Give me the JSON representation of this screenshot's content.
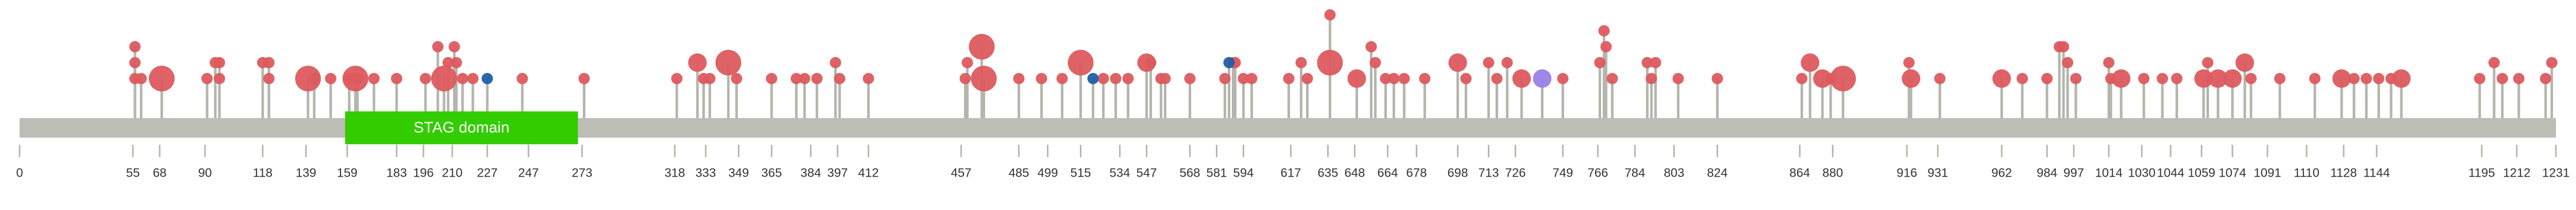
{
  "chart_data": {
    "type": "lollipop",
    "xlim": [
      0,
      1231
    ],
    "xticks": [
      0,
      55,
      68,
      90,
      118,
      139,
      159,
      183,
      196,
      210,
      227,
      247,
      273,
      318,
      333,
      349,
      365,
      384,
      397,
      412,
      457,
      485,
      499,
      515,
      534,
      547,
      568,
      581,
      594,
      617,
      635,
      648,
      664,
      678,
      698,
      713,
      726,
      749,
      766,
      784,
      803,
      824,
      864,
      880,
      916,
      931,
      962,
      984,
      997,
      1014,
      1030,
      1044,
      1059,
      1074,
      1091,
      1110,
      1128,
      1144,
      1195,
      1212,
      1231
    ],
    "domains": [
      {
        "name": "STAG domain",
        "start": 158,
        "end": 271,
        "color": "#33cc00"
      }
    ],
    "series": [
      {
        "color": "#dc5a5e",
        "x": [
          56,
          56,
          56,
          59,
          69,
          91,
          95,
          97,
          97,
          118,
          121,
          121,
          140,
          143,
          151,
          160,
          163,
          164,
          172,
          183,
          197,
          203,
          206,
          208,
          211,
          212,
          215,
          220,
          244,
          274,
          319,
          329,
          332,
          335,
          344,
          348,
          365,
          377,
          381,
          387,
          396,
          398,
          412,
          459,
          460,
          467,
          468,
          485,
          496,
          506,
          515,
          526,
          532,
          538,
          547,
          549,
          554,
          556,
          568,
          585,
          589,
          590,
          594,
          598,
          616,
          622,
          625,
          636,
          636,
          649,
          656,
          658,
          663,
          667,
          672,
          682,
          698,
          702,
          713,
          717,
          722,
          729,
          749,
          767,
          769,
          770,
          773,
          790,
          792,
          794,
          805,
          824,
          865,
          869,
          875,
          879,
          885,
          917,
          918,
          932,
          962,
          972,
          984,
          990,
          992,
          994,
          998,
          1014,
          1015,
          1020,
          1031,
          1040,
          1047,
          1060,
          1062,
          1067,
          1074,
          1080,
          1083,
          1097,
          1114,
          1127,
          1133,
          1139,
          1145,
          1151,
          1156,
          1194,
          1201,
          1205,
          1213,
          1226,
          1229
        ],
        "values": [
          3,
          2,
          1,
          1,
          1,
          1,
          2,
          2,
          1,
          2,
          2,
          1,
          1,
          1,
          1,
          1,
          1,
          1,
          1,
          1,
          1,
          3,
          1,
          2,
          3,
          2,
          1,
          1,
          1,
          1,
          1,
          2,
          1,
          1,
          2,
          1,
          1,
          1,
          1,
          1,
          2,
          1,
          1,
          1,
          2,
          3,
          1,
          1,
          1,
          1,
          2,
          1,
          1,
          1,
          2,
          2,
          1,
          1,
          1,
          1,
          2,
          2,
          1,
          1,
          1,
          2,
          1,
          2,
          5,
          1,
          3,
          2,
          1,
          1,
          1,
          1,
          2,
          1,
          2,
          1,
          2,
          1,
          1,
          2,
          4,
          3,
          1,
          2,
          1,
          2,
          1,
          1,
          1,
          2,
          1,
          1,
          1,
          2,
          1,
          1,
          1,
          1,
          1,
          3,
          3,
          2,
          1,
          2,
          1,
          1,
          1,
          1,
          1,
          1,
          2,
          1,
          1,
          2,
          1,
          1,
          1,
          1,
          1,
          1,
          1,
          1,
          1,
          1,
          2,
          1,
          1,
          1,
          2
        ],
        "sizes": [
          1,
          1,
          1,
          1,
          3,
          1,
          1,
          1,
          1,
          1,
          1,
          1,
          3,
          1,
          1,
          1,
          3,
          1,
          1,
          1,
          1,
          1,
          3,
          1,
          1,
          1,
          1,
          1,
          1,
          1,
          1,
          2,
          1,
          1,
          3,
          1,
          1,
          1,
          1,
          1,
          1,
          1,
          1,
          1,
          1,
          3,
          3,
          1,
          1,
          1,
          3,
          1,
          1,
          1,
          2,
          1,
          1,
          1,
          1,
          1,
          1,
          1,
          1,
          1,
          1,
          1,
          1,
          3,
          1,
          2,
          1,
          1,
          1,
          1,
          1,
          1,
          2,
          1,
          1,
          1,
          1,
          2,
          1,
          1,
          1,
          1,
          1,
          1,
          1,
          1,
          1,
          1,
          1,
          2,
          2,
          1,
          3,
          1,
          2,
          1,
          2,
          1,
          1,
          1,
          1,
          1,
          1,
          1,
          1,
          2,
          1,
          1,
          1,
          2,
          1,
          2,
          2,
          2,
          1,
          1,
          1,
          2,
          1,
          1,
          1,
          1,
          2,
          1,
          1,
          1,
          1,
          1,
          1
        ]
      },
      {
        "color": "#1f5fa8",
        "x": [
          227,
          521,
          587
        ],
        "values": [
          1,
          1,
          2
        ],
        "sizes": [
          1,
          1,
          1
        ]
      },
      {
        "color": "#9b7fe6",
        "x": [
          739
        ],
        "values": [
          1
        ],
        "sizes": [
          2
        ]
      }
    ]
  }
}
